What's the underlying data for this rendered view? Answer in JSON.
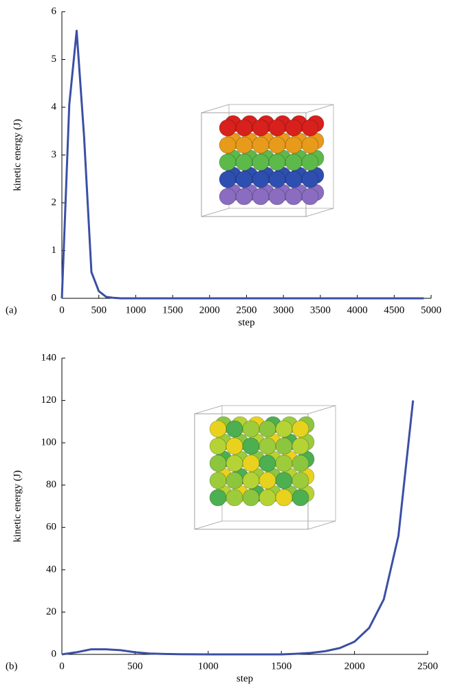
{
  "chart_data": [
    {
      "type": "line",
      "panel": "(a)",
      "xlabel": "step",
      "ylabel": "kinetic energy (J)",
      "x": [
        0,
        100,
        200,
        300,
        400,
        500,
        600,
        700,
        800,
        1000,
        2000,
        3000,
        4000,
        4900
      ],
      "series": [
        {
          "color": "#3a4fa5",
          "values": [
            0,
            4.05,
            5.6,
            3.4,
            0.55,
            0.15,
            0.03,
            0.01,
            0,
            0,
            0,
            0,
            0,
            0
          ]
        }
      ],
      "xlim": [
        0,
        5000
      ],
      "xticks": [
        0,
        500,
        1000,
        1500,
        2000,
        2500,
        3000,
        3500,
        4000,
        4500,
        5000
      ],
      "ylim": [
        0,
        6
      ],
      "yticks": [
        0,
        1,
        2,
        3,
        4,
        5,
        6
      ]
    },
    {
      "type": "line",
      "panel": "(b)",
      "xlabel": "step",
      "ylabel": "kinetic energy (J)",
      "x": [
        0,
        100,
        200,
        300,
        400,
        500,
        600,
        700,
        800,
        1000,
        1200,
        1400,
        1500,
        1600,
        1700,
        1800,
        1900,
        2000,
        2100,
        2200,
        2300,
        2400
      ],
      "series": [
        {
          "color": "#3a4fa5",
          "values": [
            0,
            1,
            2.4,
            2.4,
            2,
            1,
            0.4,
            0.2,
            0.1,
            0,
            0,
            0,
            0,
            0.3,
            0.7,
            1.5,
            3,
            6,
            12.5,
            26,
            56,
            120
          ]
        }
      ],
      "xlim": [
        0,
        2500
      ],
      "xticks": [
        0,
        500,
        1000,
        1500,
        2000,
        2500
      ],
      "ylim": [
        0,
        140
      ],
      "yticks": [
        0,
        20,
        40,
        60,
        80,
        100,
        120,
        140
      ]
    }
  ]
}
